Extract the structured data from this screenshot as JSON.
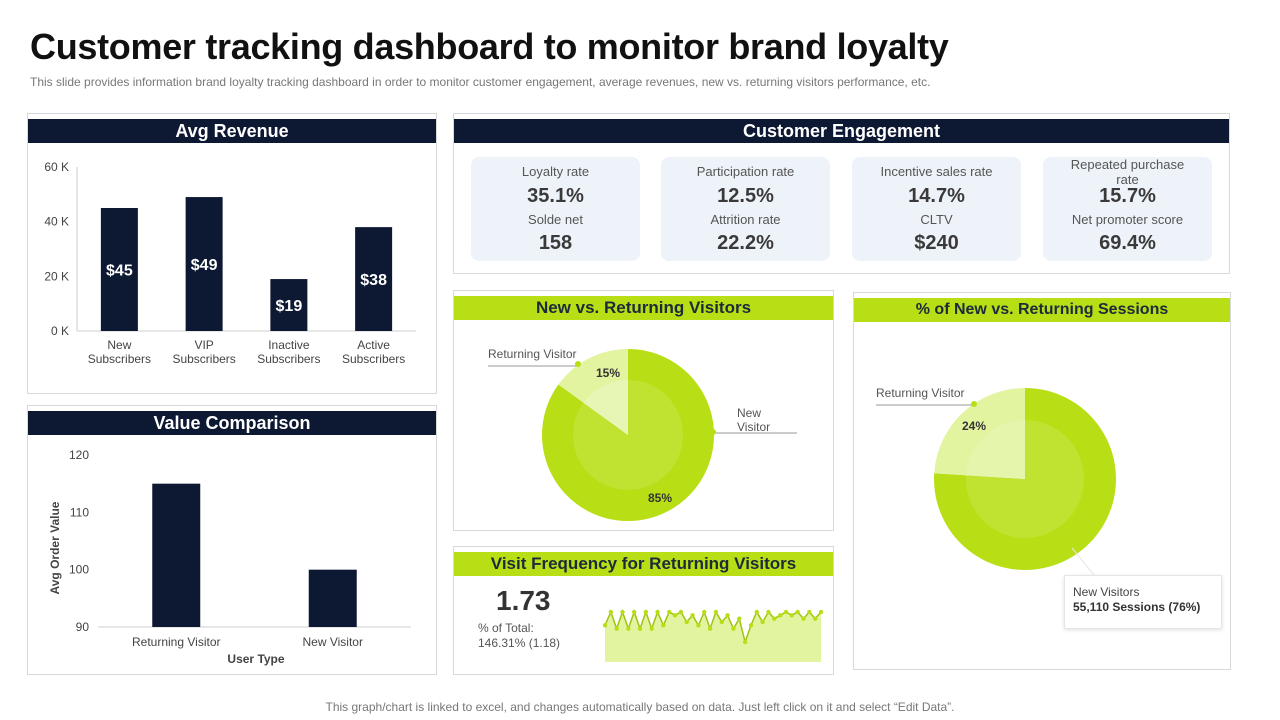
{
  "header": {
    "title": "Customer tracking dashboard to monitor brand loyalty",
    "subtitle": "This slide provides information brand loyalty tracking dashboard in order to monitor customer engagement, average revenues, new vs. returning visitors performance, etc."
  },
  "footer": {
    "note": "This graph/chart is linked to excel,  and changes automatically based on data. Just left click on it and select “Edit Data”."
  },
  "colors": {
    "navy": "#0d1833",
    "lime": "#b8df15",
    "lime_light": "#e2f4a0",
    "card": "#eef3fa"
  },
  "engagement": {
    "title": "Customer Engagement",
    "cards": [
      {
        "label1": "Loyalty rate",
        "value1": "35.1%",
        "label2": "Solde net",
        "value2": "158"
      },
      {
        "label1": "Participation rate",
        "value1": "12.5%",
        "label2": "Attrition rate",
        "value2": "22.2%"
      },
      {
        "label1": "Incentive  sales rate",
        "value1": "14.7%",
        "label2": "CLTV",
        "value2": "$240"
      },
      {
        "label1": "Repeated purchase",
        "label1b": "rate",
        "value1": "15.7%",
        "label2": "Net promoter score",
        "value2": "69.4%"
      }
    ]
  },
  "visitors": {
    "title": "New vs. Returning Visitors",
    "returning_label": "Returning Visitor",
    "new_label_1": "New",
    "new_label_2": "Visitor"
  },
  "sessions": {
    "title": "% of New vs. Returning Sessions",
    "returning_label": "Returning Visitor",
    "tooltip_line1": "New Visitors",
    "tooltip_line2": "55,110  Sessions  (76%)"
  },
  "frequency": {
    "title": "Visit Frequency for Returning Visitors",
    "value": "1.73",
    "pct_label": "% of Total:",
    "pct_value": "146.31% (1.18)"
  },
  "chart_data": [
    {
      "id": "avg_revenue",
      "type": "bar",
      "title": "Avg Revenue",
      "categories": [
        "New Subscribers",
        "VIP Subscribers",
        "Inactive Subscribers",
        "Active Subscribers"
      ],
      "category_lines": [
        [
          "New",
          "Subscribers"
        ],
        [
          "VIP",
          "Subscribers"
        ],
        [
          "Inactive",
          "Subscribers"
        ],
        [
          "Active",
          "Subscribers"
        ]
      ],
      "values": [
        45,
        49,
        19,
        38
      ],
      "data_labels": [
        "$45",
        "$49",
        "$19",
        "$38"
      ],
      "yticks": [
        "60 K",
        "40 K",
        "20 K",
        "0 K"
      ],
      "ytick_values": [
        60,
        40,
        20,
        0
      ],
      "ylim": [
        0,
        60
      ]
    },
    {
      "id": "value_comparison",
      "type": "bar",
      "title": "Value Comparison",
      "categories": [
        "Returning Visitor",
        "New Visitor"
      ],
      "values": [
        115,
        100
      ],
      "xlabel": "User Type",
      "ylabel": "Avg Order Value",
      "yticks": [
        "120",
        "110",
        "100",
        "90"
      ],
      "ytick_values": [
        120,
        110,
        100,
        90
      ],
      "ylim": [
        90,
        120
      ]
    },
    {
      "id": "new_vs_returning_visitors",
      "type": "pie",
      "labels": [
        "New Visitor",
        "Returning Visitor"
      ],
      "values": [
        85,
        15
      ],
      "data_labels": [
        "85%",
        "15%"
      ]
    },
    {
      "id": "new_vs_returning_sessions",
      "type": "pie",
      "labels": [
        "New Visitors",
        "Returning Visitor"
      ],
      "values": [
        76,
        24
      ],
      "data_labels": [
        "76%",
        "24%"
      ]
    },
    {
      "id": "visit_frequency",
      "type": "area",
      "x": [
        1,
        2,
        3,
        4,
        5,
        6,
        7,
        8,
        9,
        10,
        11,
        12,
        13,
        14,
        15,
        16,
        17,
        18,
        19,
        20,
        21,
        22,
        23,
        24,
        25,
        26,
        27,
        28,
        29,
        30,
        31,
        32,
        33,
        34,
        35,
        36,
        37,
        38
      ],
      "values": [
        1.55,
        1.75,
        1.5,
        1.75,
        1.5,
        1.75,
        1.5,
        1.75,
        1.5,
        1.75,
        1.55,
        1.75,
        1.7,
        1.75,
        1.6,
        1.7,
        1.55,
        1.75,
        1.5,
        1.75,
        1.6,
        1.7,
        1.5,
        1.65,
        1.3,
        1.55,
        1.75,
        1.6,
        1.75,
        1.65,
        1.7,
        1.75,
        1.7,
        1.75,
        1.65,
        1.75,
        1.65,
        1.75
      ],
      "ylim": [
        1.0,
        1.9
      ]
    }
  ]
}
